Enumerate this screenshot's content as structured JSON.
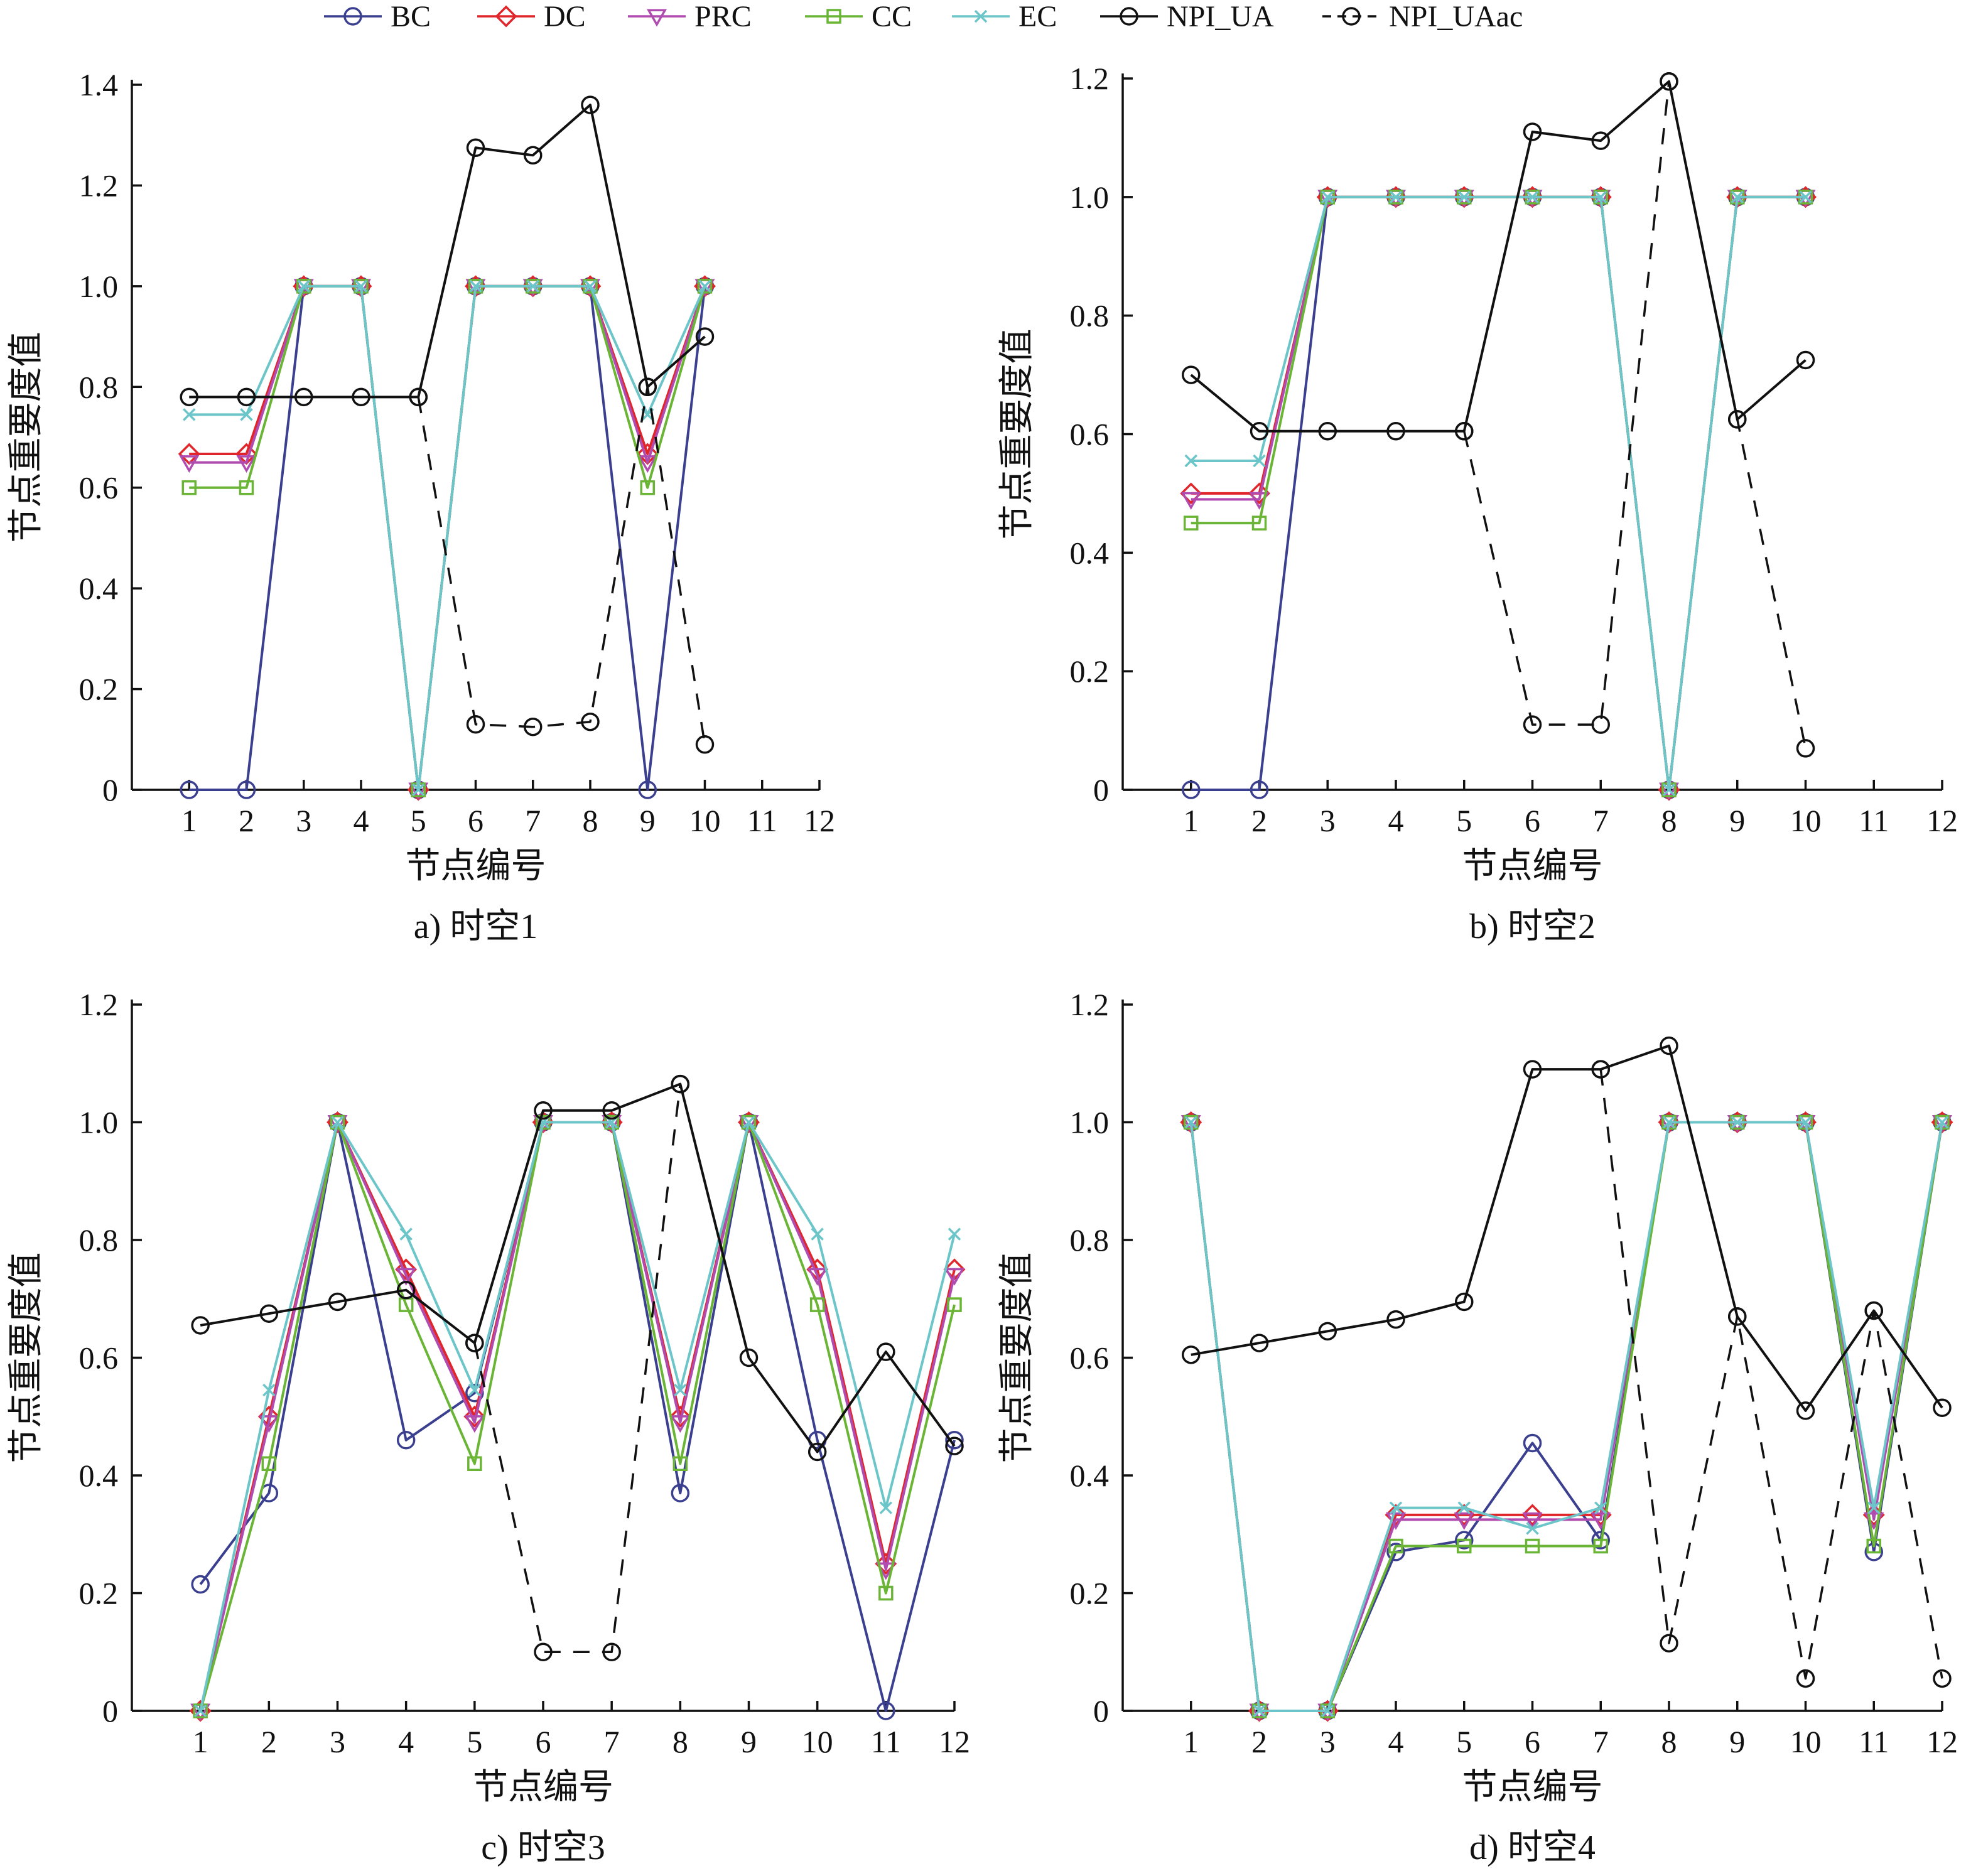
{
  "legend": {
    "items": [
      {
        "label": "BC",
        "color": "#3b3f8f",
        "marker": "circle",
        "dash": "solid"
      },
      {
        "label": "DC",
        "color": "#e0262b",
        "marker": "diamond",
        "dash": "solid"
      },
      {
        "label": "PRC",
        "color": "#b04bb0",
        "marker": "triangle-down",
        "dash": "solid"
      },
      {
        "label": "CC",
        "color": "#6ab536",
        "marker": "square",
        "dash": "solid"
      },
      {
        "label": "EC",
        "color": "#6cc5c8",
        "marker": "x",
        "dash": "solid"
      },
      {
        "label": "NPI_UA",
        "color": "#111111",
        "marker": "circle",
        "dash": "solid"
      },
      {
        "label": "NPI_UAac",
        "color": "#111111",
        "marker": "circle",
        "dash": "dashed"
      }
    ]
  },
  "chart_data": [
    {
      "type": "line",
      "caption": "a) 时空1",
      "xlabel": "节点编号",
      "ylabel": "节点重要度值",
      "x_ticks": [
        1,
        2,
        3,
        4,
        5,
        6,
        7,
        8,
        9,
        10,
        11,
        12
      ],
      "xlim": [
        0,
        12
      ],
      "ylim": [
        0,
        1.4
      ],
      "y_ticks": [
        "0",
        "0.2",
        "0.4",
        "0.6",
        "0.8",
        "1.0",
        "1.2",
        "1.4"
      ],
      "grid": false,
      "legend_position": "top",
      "series": [
        {
          "name": "BC",
          "x": [
            1,
            2,
            3,
            4,
            5,
            6,
            7,
            8,
            9,
            10
          ],
          "y": [
            0,
            0,
            1.0,
            1.0,
            0,
            1.0,
            1.0,
            1.0,
            0,
            1.0
          ]
        },
        {
          "name": "DC",
          "x": [
            1,
            2,
            3,
            4,
            5,
            6,
            7,
            8,
            9,
            10
          ],
          "y": [
            0.667,
            0.667,
            1.0,
            1.0,
            0,
            1.0,
            1.0,
            1.0,
            0.667,
            1.0
          ]
        },
        {
          "name": "PRC",
          "x": [
            1,
            2,
            3,
            4,
            5,
            6,
            7,
            8,
            9,
            10
          ],
          "y": [
            0.65,
            0.65,
            1.0,
            1.0,
            0,
            1.0,
            1.0,
            1.0,
            0.65,
            1.0
          ]
        },
        {
          "name": "CC",
          "x": [
            1,
            2,
            3,
            4,
            5,
            6,
            7,
            8,
            9,
            10
          ],
          "y": [
            0.6,
            0.6,
            1.0,
            1.0,
            0,
            1.0,
            1.0,
            1.0,
            0.6,
            1.0
          ]
        },
        {
          "name": "EC",
          "x": [
            1,
            2,
            3,
            4,
            5,
            6,
            7,
            8,
            9,
            10
          ],
          "y": [
            0.745,
            0.745,
            1.0,
            1.0,
            0,
            1.0,
            1.0,
            1.0,
            0.745,
            1.0
          ]
        },
        {
          "name": "NPI_UA",
          "x": [
            1,
            2,
            3,
            4,
            5,
            6,
            7,
            8,
            9,
            10
          ],
          "y": [
            0.78,
            0.78,
            0.78,
            0.78,
            0.78,
            1.275,
            1.26,
            1.36,
            0.8,
            0.9
          ]
        },
        {
          "name": "NPI_UAac",
          "x": [
            5,
            6,
            7,
            8,
            9,
            10
          ],
          "y": [
            0.78,
            0.13,
            0.125,
            0.135,
            0.8,
            0.09
          ]
        }
      ]
    },
    {
      "type": "line",
      "caption": "b) 时空2",
      "xlabel": "节点编号",
      "ylabel": "节点重要度值",
      "x_ticks": [
        1,
        2,
        3,
        4,
        5,
        6,
        7,
        8,
        9,
        10,
        11,
        12
      ],
      "xlim": [
        0,
        12
      ],
      "ylim": [
        0,
        1.2
      ],
      "y_ticks": [
        "0",
        "0.2",
        "0.4",
        "0.6",
        "0.8",
        "1.0",
        "1.2"
      ],
      "grid": false,
      "series": [
        {
          "name": "BC",
          "x": [
            1,
            2,
            3,
            4,
            5,
            6,
            7,
            8,
            9,
            10
          ],
          "y": [
            0,
            0,
            1.0,
            1.0,
            1.0,
            1.0,
            1.0,
            0,
            1.0,
            1.0
          ]
        },
        {
          "name": "DC",
          "x": [
            1,
            2,
            3,
            4,
            5,
            6,
            7,
            8,
            9,
            10
          ],
          "y": [
            0.5,
            0.5,
            1.0,
            1.0,
            1.0,
            1.0,
            1.0,
            0,
            1.0,
            1.0
          ]
        },
        {
          "name": "PRC",
          "x": [
            1,
            2,
            3,
            4,
            5,
            6,
            7,
            8,
            9,
            10
          ],
          "y": [
            0.49,
            0.49,
            1.0,
            1.0,
            1.0,
            1.0,
            1.0,
            0,
            1.0,
            1.0
          ]
        },
        {
          "name": "CC",
          "x": [
            1,
            2,
            3,
            4,
            5,
            6,
            7,
            8,
            9,
            10
          ],
          "y": [
            0.45,
            0.45,
            1.0,
            1.0,
            1.0,
            1.0,
            1.0,
            0,
            1.0,
            1.0
          ]
        },
        {
          "name": "EC",
          "x": [
            1,
            2,
            3,
            4,
            5,
            6,
            7,
            8,
            9,
            10
          ],
          "y": [
            0.555,
            0.555,
            1.0,
            1.0,
            1.0,
            1.0,
            1.0,
            0,
            1.0,
            1.0
          ]
        },
        {
          "name": "NPI_UA",
          "x": [
            1,
            2,
            3,
            4,
            5,
            6,
            7,
            8,
            9,
            10
          ],
          "y": [
            0.7,
            0.605,
            0.605,
            0.605,
            0.605,
            1.11,
            1.095,
            1.195,
            0.625,
            0.725
          ]
        },
        {
          "name": "NPI_UAac",
          "x": [
            5,
            6,
            7,
            8,
            9,
            10
          ],
          "y": [
            0.605,
            0.11,
            0.11,
            1.195,
            0.625,
            0.07
          ]
        }
      ]
    },
    {
      "type": "line",
      "caption": "c) 时空3",
      "xlabel": "节点编号",
      "ylabel": "节点重要度值",
      "x_ticks": [
        1,
        2,
        3,
        4,
        5,
        6,
        7,
        8,
        9,
        10,
        11,
        12
      ],
      "xlim": [
        0,
        12
      ],
      "ylim": [
        0,
        1.2
      ],
      "y_ticks": [
        "0",
        "0.2",
        "0.4",
        "0.6",
        "0.8",
        "1.0",
        "1.2"
      ],
      "grid": false,
      "series": [
        {
          "name": "BC",
          "x": [
            1,
            2,
            3,
            4,
            5,
            6,
            7,
            8,
            9,
            10,
            11,
            12
          ],
          "y": [
            0.215,
            0.37,
            1.0,
            0.46,
            0.54,
            1.0,
            1.0,
            0.37,
            1.0,
            0.46,
            0,
            0.46
          ]
        },
        {
          "name": "DC",
          "x": [
            1,
            2,
            3,
            4,
            5,
            6,
            7,
            8,
            9,
            10,
            11,
            12
          ],
          "y": [
            0,
            0.5,
            1.0,
            0.75,
            0.5,
            1.0,
            1.0,
            0.5,
            1.0,
            0.75,
            0.25,
            0.75
          ]
        },
        {
          "name": "PRC",
          "x": [
            1,
            2,
            3,
            4,
            5,
            6,
            7,
            8,
            9,
            10,
            11,
            12
          ],
          "y": [
            0,
            0.49,
            1.0,
            0.74,
            0.49,
            1.0,
            1.0,
            0.49,
            1.0,
            0.74,
            0.24,
            0.74
          ]
        },
        {
          "name": "CC",
          "x": [
            1,
            2,
            3,
            4,
            5,
            6,
            7,
            8,
            9,
            10,
            11,
            12
          ],
          "y": [
            0,
            0.42,
            1.0,
            0.69,
            0.42,
            1.0,
            1.0,
            0.42,
            1.0,
            0.69,
            0.2,
            0.69
          ]
        },
        {
          "name": "EC",
          "x": [
            1,
            2,
            3,
            4,
            5,
            6,
            7,
            8,
            9,
            10,
            11,
            12
          ],
          "y": [
            0,
            0.545,
            1.0,
            0.81,
            0.545,
            1.0,
            1.0,
            0.545,
            1.0,
            0.81,
            0.345,
            0.81
          ]
        },
        {
          "name": "NPI_UA",
          "x": [
            1,
            2,
            3,
            4,
            5,
            6,
            7,
            8,
            9,
            10,
            11,
            12
          ],
          "y": [
            0.655,
            0.675,
            0.695,
            0.715,
            0.625,
            1.02,
            1.02,
            1.065,
            0.6,
            0.44,
            0.61,
            0.45
          ]
        },
        {
          "name": "NPI_UAac",
          "x": [
            5,
            6,
            7,
            8
          ],
          "y": [
            0.625,
            0.1,
            0.1,
            1.065
          ]
        }
      ]
    },
    {
      "type": "line",
      "caption": "d) 时空4",
      "xlabel": "节点编号",
      "ylabel": "节点重要度值",
      "x_ticks": [
        1,
        2,
        3,
        4,
        5,
        6,
        7,
        8,
        9,
        10,
        11,
        12
      ],
      "xlim": [
        0,
        12
      ],
      "ylim": [
        0,
        1.2
      ],
      "y_ticks": [
        "0",
        "0.2",
        "0.4",
        "0.6",
        "0.8",
        "1.0",
        "1.2"
      ],
      "grid": false,
      "series": [
        {
          "name": "BC",
          "x": [
            1,
            2,
            3,
            4,
            5,
            6,
            7,
            8,
            9,
            10,
            11,
            12
          ],
          "y": [
            1.0,
            0,
            0,
            0.27,
            0.29,
            0.455,
            0.29,
            1.0,
            1.0,
            1.0,
            0.27,
            1.0
          ]
        },
        {
          "name": "DC",
          "x": [
            1,
            2,
            3,
            4,
            5,
            6,
            7,
            8,
            9,
            10,
            11,
            12
          ],
          "y": [
            1.0,
            0,
            0,
            0.333,
            0.333,
            0.333,
            0.333,
            1.0,
            1.0,
            1.0,
            0.333,
            1.0
          ]
        },
        {
          "name": "PRC",
          "x": [
            1,
            2,
            3,
            4,
            5,
            6,
            7,
            8,
            9,
            10,
            11,
            12
          ],
          "y": [
            1.0,
            0,
            0,
            0.325,
            0.325,
            0.325,
            0.325,
            1.0,
            1.0,
            1.0,
            0.325,
            1.0
          ]
        },
        {
          "name": "CC",
          "x": [
            1,
            2,
            3,
            4,
            5,
            6,
            7,
            8,
            9,
            10,
            11,
            12
          ],
          "y": [
            1.0,
            0,
            0,
            0.28,
            0.28,
            0.28,
            0.28,
            1.0,
            1.0,
            1.0,
            0.28,
            1.0
          ]
        },
        {
          "name": "EC",
          "x": [
            1,
            2,
            3,
            4,
            5,
            6,
            7,
            8,
            9,
            10,
            11,
            12
          ],
          "y": [
            1.0,
            0,
            0,
            0.345,
            0.345,
            0.31,
            0.345,
            1.0,
            1.0,
            1.0,
            0.345,
            1.0
          ]
        },
        {
          "name": "NPI_UA",
          "x": [
            1,
            2,
            3,
            4,
            5,
            6,
            7,
            8,
            9,
            10,
            11,
            12
          ],
          "y": [
            0.605,
            0.625,
            0.645,
            0.665,
            0.695,
            1.09,
            1.09,
            1.13,
            0.67,
            0.51,
            0.68,
            0.515
          ]
        },
        {
          "name": "NPI_UAac",
          "x": [
            7,
            8,
            9,
            10,
            11,
            12
          ],
          "y": [
            1.09,
            0.115,
            0.67,
            0.055,
            0.68,
            0.055
          ]
        }
      ]
    }
  ]
}
